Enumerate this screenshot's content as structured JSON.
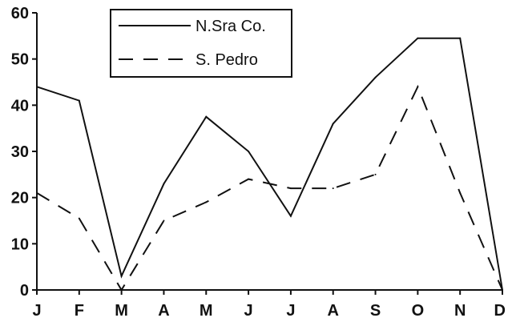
{
  "chart_data": {
    "type": "line",
    "title": "",
    "xlabel": "",
    "ylabel": "",
    "categories": [
      "J",
      "F",
      "M",
      "A",
      "M",
      "J",
      "J",
      "A",
      "S",
      "O",
      "N",
      "D"
    ],
    "ylim": [
      0,
      60
    ],
    "yticks": [
      "0",
      "10",
      "20",
      "30",
      "40",
      "50",
      "60"
    ],
    "grid": false,
    "legend_position": "top-left",
    "series": [
      {
        "name": "N.Sra Co.",
        "style": "solid",
        "color": "#111111",
        "values": [
          44,
          41,
          3,
          23,
          37.5,
          30,
          16,
          36,
          46,
          54.5,
          54.5,
          0
        ]
      },
      {
        "name": "S. Pedro",
        "style": "dashed",
        "color": "#111111",
        "values": [
          21,
          15.5,
          0,
          15,
          19,
          24,
          22,
          22,
          25,
          44,
          21,
          0
        ]
      }
    ]
  }
}
